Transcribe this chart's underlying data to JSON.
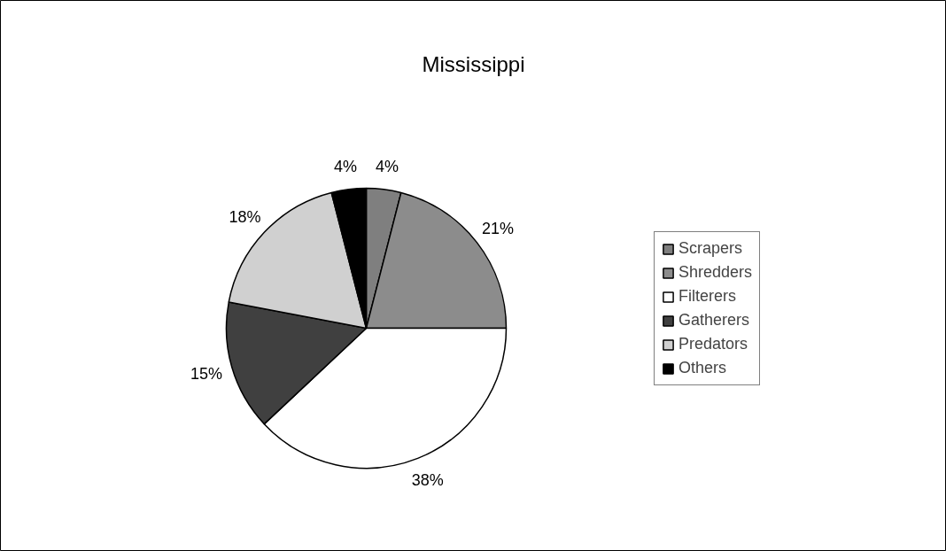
{
  "chart_data": {
    "type": "pie",
    "title": "Mississippi",
    "categories": [
      "Scrapers",
      "Shredders",
      "Filterers",
      "Gatherers",
      "Predators",
      "Others"
    ],
    "values": [
      4,
      21,
      38,
      15,
      18,
      4
    ],
    "colors": [
      "#7f7f7f",
      "#8c8c8c",
      "#ffffff",
      "#404040",
      "#d0d0d0",
      "#000000"
    ],
    "value_labels": [
      "4%",
      "21%",
      "38%",
      "15%",
      "18%",
      "4%"
    ],
    "legend": "right"
  }
}
